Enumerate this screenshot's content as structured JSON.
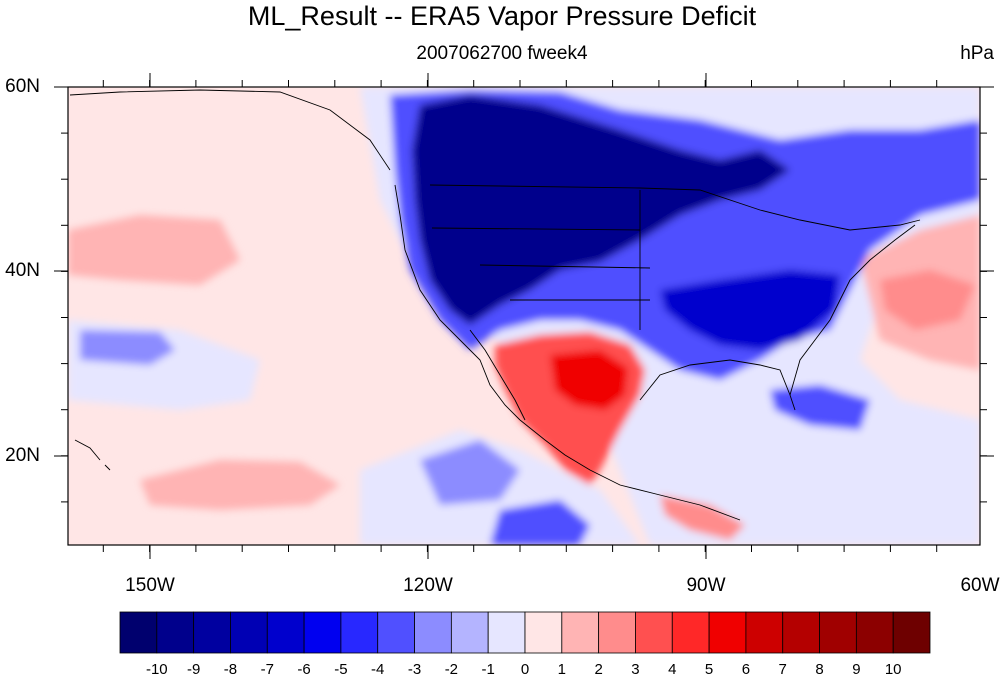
{
  "title": "ML_Result -- ERA5 Vapor Pressure Deficit",
  "subtitle": "2007062700 fweek4",
  "units": "hPa",
  "lat_labels": [
    "60N",
    "40N",
    "20N"
  ],
  "lon_labels": [
    "150W",
    "120W",
    "90W",
    "60W"
  ],
  "colorbar": {
    "labels": [
      "-10",
      "-9",
      "-8",
      "-7",
      "-6",
      "-5",
      "-4",
      "-3",
      "-2",
      "-1",
      "0",
      "1",
      "2",
      "3",
      "4",
      "5",
      "6",
      "7",
      "8",
      "9",
      "10"
    ],
    "colors": [
      "#00006e",
      "#00008c",
      "#0000a0",
      "#0000b4",
      "#0000cd",
      "#0000f0",
      "#2828ff",
      "#5050ff",
      "#8c8cff",
      "#b4b4ff",
      "#e6e6ff",
      "#ffe6e6",
      "#ffb4b4",
      "#ff8c8c",
      "#ff5050",
      "#ff2828",
      "#f00000",
      "#cd0000",
      "#b40000",
      "#a00000",
      "#8c0000",
      "#6e0000"
    ]
  },
  "colors": {
    "background": "#ffe6e6",
    "light_blue": "#e6e6ff",
    "mid_blue": "#5050ff",
    "dark_blue": "#00008c",
    "light_red": "#ffb4b4",
    "mid_red": "#ff5050",
    "strong_red": "#f00000"
  }
}
